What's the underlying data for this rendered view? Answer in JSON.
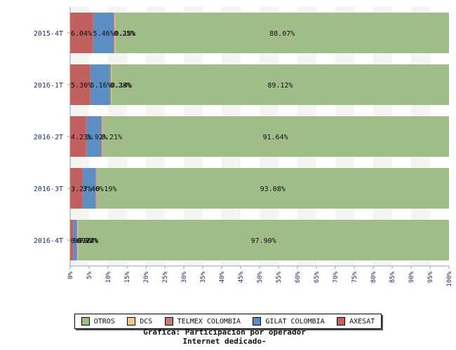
{
  "chart_data": {
    "type": "bar",
    "orientation": "horizontal",
    "stacked": true,
    "categories": [
      "2015-4T",
      "2016-1T",
      "2016-2T",
      "2016-3T",
      "2016-4T"
    ],
    "series": [
      {
        "name": "AXESAT",
        "color": "#c0605f",
        "values": [
          6.04,
          5.3,
          4.23,
          3.27,
          0.79
        ]
      },
      {
        "name": "GILAT COLOMBIA",
        "color": "#5b8ec3",
        "values": [
          5.46,
          5.16,
          3.92,
          3.46,
          0.92
        ]
      },
      {
        "name": "TELMEX COLOMBIA",
        "color": "#c77a6e",
        "values": [
          0.25,
          0.28,
          0.21,
          0.19,
          0.22
        ]
      },
      {
        "name": "DCS",
        "color": "#f0c98c",
        "values": [
          0.18,
          0.14,
          0.0,
          0.0,
          0.17
        ]
      },
      {
        "name": "OTROS",
        "color": "#a0bd89",
        "values": [
          88.07,
          89.12,
          91.64,
          93.08,
          97.9
        ]
      }
    ],
    "labels": [
      [
        {
          "series": 0,
          "text": "6.04%"
        },
        {
          "series": 1,
          "text": "5.46%"
        },
        {
          "series": 2,
          "text": "0.25%"
        },
        {
          "series": 3,
          "text": "0.18%"
        },
        {
          "series": 4,
          "text": "88.07%"
        }
      ],
      [
        {
          "series": 0,
          "text": "5.30%"
        },
        {
          "series": 1,
          "text": "5.16%"
        },
        {
          "series": 2,
          "text": "0.28%"
        },
        {
          "series": 3,
          "text": "0.14%"
        },
        {
          "series": 4,
          "text": "89.12%"
        }
      ],
      [
        {
          "series": 0,
          "text": "4.23%"
        },
        {
          "series": 1,
          "text": "3.92%"
        },
        {
          "series": 2,
          "text": "0.21%"
        },
        {
          "series": 4,
          "text": "91.64%"
        }
      ],
      [
        {
          "series": 0,
          "text": "3.27%"
        },
        {
          "series": 1,
          "text": "3.46%"
        },
        {
          "series": 2,
          "text": "0.19%"
        },
        {
          "series": 4,
          "text": "93.08%"
        }
      ],
      [
        {
          "series": 0,
          "text": "0.79%"
        },
        {
          "series": 1,
          "text": "0.92%"
        },
        {
          "series": 2,
          "text": "0.22%"
        },
        {
          "series": 3,
          "text": "0.17%"
        },
        {
          "series": 4,
          "text": "97.90%"
        }
      ]
    ],
    "xlim": [
      0,
      100
    ],
    "x_ticks": [
      "0%",
      "5%",
      "10%",
      "15%",
      "20%",
      "25%",
      "30%",
      "35%",
      "40%",
      "45%",
      "50%",
      "55%",
      "60%",
      "65%",
      "70%",
      "75%",
      "80%",
      "85%",
      "90%",
      "95%",
      "100%"
    ],
    "legend_order": [
      "OTROS",
      "DCS",
      "TELMEX COLOMBIA",
      "GILAT COLOMBIA",
      "AXESAT"
    ],
    "legend_position": "bottom",
    "title_line1": "Gráfica: Participación por operador",
    "title_line2": "Internet dedicado-",
    "background_bands": [
      "#f4f4f0",
      "#ffffff"
    ]
  }
}
